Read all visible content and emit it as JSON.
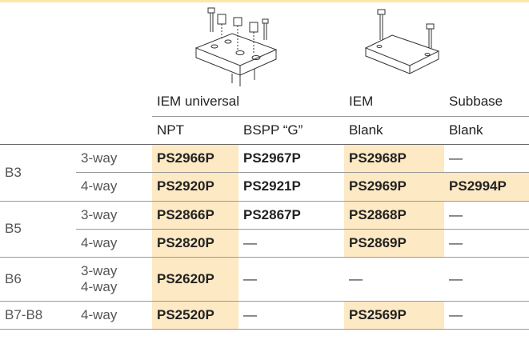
{
  "header": {
    "groups": [
      "IEM universal",
      "IEM",
      "Subbase"
    ],
    "subheaders": [
      "NPT",
      "BSPP “G”",
      "Blank",
      "Blank"
    ]
  },
  "table": {
    "groups": [
      {
        "label": "B3",
        "rows": [
          {
            "way": "3-way",
            "cells": [
              "PS2966P",
              "PS2967P",
              "PS2968P",
              "—"
            ]
          },
          {
            "way": "4-way",
            "cells": [
              "PS2920P",
              "PS2921P",
              "PS2969P",
              "PS2994P"
            ]
          }
        ]
      },
      {
        "label": "B5",
        "rows": [
          {
            "way": "3-way",
            "cells": [
              "PS2866P",
              "PS2867P",
              "PS2868P",
              "—"
            ]
          },
          {
            "way": "4-way",
            "cells": [
              "PS2820P",
              "—",
              "PS2869P",
              "—"
            ]
          }
        ]
      },
      {
        "label": "B6",
        "rows": [
          {
            "way": [
              "3-way",
              "4-way"
            ],
            "cells": [
              "PS2620P",
              "—",
              "—",
              "—"
            ]
          }
        ]
      },
      {
        "label": "B7-B8",
        "rows": [
          {
            "way": "4-way",
            "cells": [
              "PS2520P",
              "—",
              "PS2569P",
              "—"
            ]
          }
        ]
      }
    ]
  }
}
